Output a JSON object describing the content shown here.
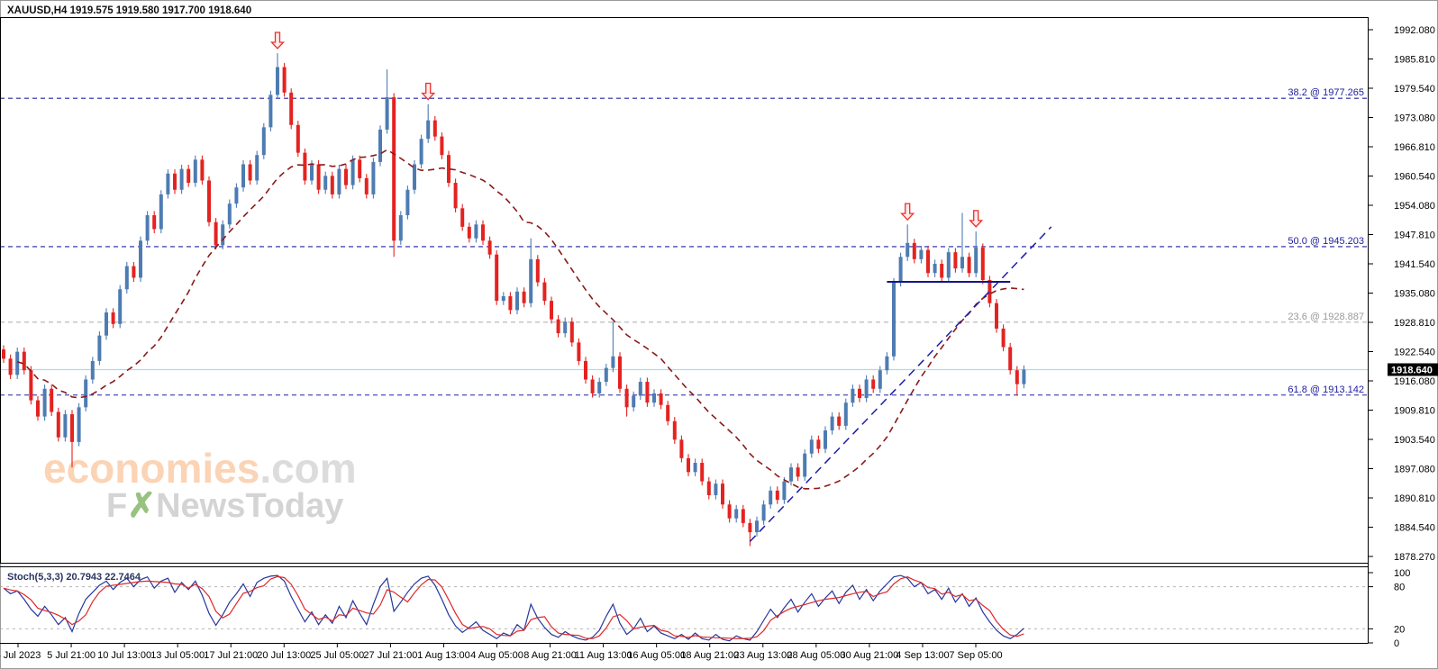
{
  "header": {
    "title": "XAUUSD,H4  1919.575 1919.580 1917.700 1918.640"
  },
  "symbol_info": {
    "symbol": "XAUUSD",
    "period": "H4",
    "open": "1919.575",
    "high": "1919.580",
    "low": "1917.700",
    "close": "1918.640"
  },
  "watermark": {
    "line1_brand": "economies",
    "line1_suffix": ".com",
    "line2_prefix": "F",
    "line2_mark": "✗",
    "line2_rest": "NewsToday"
  },
  "price_axis": {
    "labels": [
      "1992.080",
      "1985.810",
      "1979.540",
      "1973.080",
      "1966.810",
      "1960.540",
      "1954.080",
      "1947.810",
      "1941.540",
      "1935.080",
      "1928.810",
      "1922.540",
      "1916.080",
      "1909.810",
      "1903.540",
      "1897.080",
      "1890.810",
      "1884.540",
      "1878.270"
    ],
    "current_price": "1918.640"
  },
  "time_axis": {
    "labels": [
      "3 Jul 2023",
      "5 Jul 21:00",
      "10 Jul 13:00",
      "13 Jul 05:00",
      "17 Jul 21:00",
      "20 Jul 13:00",
      "25 Jul 05:00",
      "27 Jul 21:00",
      "1 Aug 13:00",
      "4 Aug 05:00",
      "8 Aug 21:00",
      "11 Aug 13:00",
      "16 Aug 05:00",
      "18 Aug 21:00",
      "23 Aug 13:00",
      "28 Aug 05:00",
      "30 Aug 21:00",
      "4 Sep 13:00",
      "7 Sep 05:00"
    ]
  },
  "fib_levels": [
    {
      "label": "38.2 @ 1977.265",
      "price": 1977.265,
      "style": "navy"
    },
    {
      "label": "50.0 @ 1945.203",
      "price": 1945.203,
      "style": "navy"
    },
    {
      "label": "23.6 @ 1928.887",
      "price": 1928.887,
      "style": "gray"
    },
    {
      "label": "61.8 @ 1913.142",
      "price": 1913.142,
      "style": "navy"
    }
  ],
  "current_price_line": {
    "price": 1918.64
  },
  "indicator_panel": {
    "label": "Stoch(5,3,3) 20.7943 22.7464",
    "name": "Stoch(5,3,3)",
    "k_value": 20.7943,
    "d_value": 22.7464,
    "scale_labels": [
      "100",
      "80",
      "20",
      "0"
    ],
    "scale_values": [
      100,
      80,
      20,
      0
    ],
    "level_lines": [
      80,
      20
    ]
  },
  "chart_data": {
    "type": "candlestick",
    "symbol": "XAUUSD",
    "timeframe": "H4",
    "title": "XAUUSD,H4",
    "y_axis": {
      "top_price": 1992.08,
      "bottom_price": 1878.27
    },
    "x_labels": [
      "3 Jul 2023",
      "5 Jul 21:00",
      "10 Jul 13:00",
      "13 Jul 05:00",
      "17 Jul 21:00",
      "20 Jul 13:00",
      "25 Jul 05:00",
      "27 Jul 21:00",
      "1 Aug 13:00",
      "4 Aug 05:00",
      "8 Aug 21:00",
      "11 Aug 13:00",
      "16 Aug 05:00",
      "18 Aug 21:00",
      "23 Aug 13:00",
      "28 Aug 05:00",
      "30 Aug 21:00",
      "4 Sep 13:00",
      "7 Sep 05:00"
    ],
    "first_open": 1923.0,
    "closes": [
      1921.0,
      1917.5,
      1922.5,
      1918.5,
      1912.0,
      1908.5,
      1914.5,
      1909.5,
      1904.0,
      1909.0,
      1903.0,
      1910.5,
      1916.5,
      1920.5,
      1926.0,
      1931.0,
      1928.5,
      1936.0,
      1941.0,
      1938.5,
      1946.5,
      1952.0,
      1949.0,
      1956.5,
      1961.0,
      1957.5,
      1962.0,
      1959.0,
      1964.0,
      1959.5,
      1950.5,
      1945.5,
      1950.0,
      1954.5,
      1958.0,
      1963.0,
      1959.5,
      1965.0,
      1971.0,
      1978.0,
      1984.0,
      1978.5,
      1971.5,
      1965.5,
      1959.5,
      1963.0,
      1957.5,
      1960.5,
      1956.5,
      1962.0,
      1958.5,
      1964.0,
      1960.0,
      1956.5,
      1963.5,
      1970.5,
      1977.5,
      1946.5,
      1952.0,
      1957.5,
      1963.0,
      1968.5,
      1972.5,
      1969.0,
      1965.0,
      1959.0,
      1953.5,
      1949.5,
      1947.0,
      1950.0,
      1946.5,
      1943.5,
      1933.5,
      1934.5,
      1931.5,
      1935.5,
      1933.0,
      1942.5,
      1937.5,
      1933.5,
      1929.5,
      1926.5,
      1929.0,
      1924.5,
      1920.5,
      1916.5,
      1913.5,
      1916.0,
      1919.0,
      1921.5,
      1914.5,
      1910.5,
      1913.0,
      1916.0,
      1911.5,
      1913.5,
      1911.0,
      1907.5,
      1903.5,
      1899.5,
      1896.5,
      1898.5,
      1894.5,
      1891.5,
      1894.0,
      1889.5,
      1886.5,
      1888.5,
      1885.5,
      1883.5,
      1886.0,
      1889.5,
      1892.5,
      1890.5,
      1894.5,
      1897.5,
      1895.5,
      1900.5,
      1903.5,
      1901.5,
      1905.5,
      1908.5,
      1906.5,
      1911.5,
      1914.5,
      1912.5,
      1916.5,
      1914.5,
      1918.5,
      1921.5,
      1937.5,
      1943.0,
      1946.0,
      1942.5,
      1944.5,
      1939.5,
      1941.5,
      1938.5,
      1944.0,
      1940.5,
      1943.0,
      1939.5,
      1945.0,
      1938.0,
      1933.0,
      1927.5,
      1923.5,
      1918.5,
      1915.5,
      1918.64
    ],
    "wick_overrides": {
      "10": {
        "l": 1897.5
      },
      "40": {
        "h": 1987.0
      },
      "56": {
        "h": 1983.5
      },
      "57": {
        "l": 1943.0
      },
      "62": {
        "h": 1976.0
      },
      "77": {
        "h": 1947.0
      },
      "89": {
        "h": 1929.0
      },
      "91": {
        "l": 1908.5
      },
      "109": {
        "l": 1880.5
      },
      "132": {
        "h": 1950.0
      },
      "140": {
        "h": 1952.5
      },
      "142": {
        "h": 1948.5
      },
      "148": {
        "l": 1913.0
      }
    },
    "moving_average": {
      "period": 20,
      "style": "dashed"
    },
    "stoch_k": [
      78,
      70,
      74,
      62,
      48,
      38,
      52,
      40,
      26,
      36,
      16,
      42,
      62,
      72,
      82,
      88,
      76,
      86,
      92,
      80,
      90,
      94,
      78,
      88,
      92,
      72,
      86,
      76,
      88,
      68,
      42,
      25,
      40,
      58,
      70,
      84,
      66,
      86,
      92,
      95,
      96,
      88,
      66,
      48,
      30,
      44,
      26,
      40,
      28,
      52,
      36,
      60,
      42,
      26,
      55,
      80,
      92,
      45,
      58,
      72,
      84,
      92,
      95,
      82,
      62,
      40,
      24,
      15,
      22,
      30,
      18,
      12,
      6,
      14,
      10,
      26,
      18,
      55,
      35,
      22,
      12,
      8,
      16,
      10,
      6,
      4,
      8,
      18,
      38,
      55,
      28,
      12,
      20,
      35,
      16,
      24,
      14,
      10,
      6,
      12,
      5,
      14,
      6,
      4,
      12,
      5,
      3,
      10,
      6,
      4,
      16,
      32,
      48,
      36,
      50,
      62,
      44,
      58,
      70,
      52,
      64,
      74,
      56,
      72,
      82,
      62,
      76,
      60,
      74,
      84,
      94,
      96,
      92,
      80,
      86,
      70,
      76,
      62,
      78,
      58,
      70,
      52,
      64,
      44,
      30,
      18,
      10,
      6,
      12,
      20.8
    ],
    "annotations": {
      "sell_arrows": [
        {
          "index": 40,
          "tip_price": 1988.0
        },
        {
          "index": 62,
          "tip_price": 1977.0
        },
        {
          "index": 132,
          "tip_price": 1951.0
        },
        {
          "index": 142,
          "tip_price": 1949.5
        }
      ],
      "trendline": {
        "from_index": 109,
        "from_price": 1881.5,
        "to_index": 153,
        "to_price": 1949.5
      },
      "support_line": {
        "from_index": 129,
        "to_index": 147,
        "price": 1937.6
      }
    }
  },
  "colors": {
    "bull": "#4e7cb2",
    "bear": "#e42320",
    "ma": "#8b1a1a",
    "fib_navy": "#2020a0",
    "fib_gray": "#b3b3b3",
    "current_line": "#a8dfe8",
    "badge_bg": "#000000",
    "stoch_k": "#26379b",
    "stoch_d": "#e02828",
    "arrow": "#e8312b",
    "arrow_fill": "#ffe9e9",
    "trend": "#1d1da8",
    "support": "#14148c",
    "level_dash": "#b5b5b5",
    "wm_orange": "#fbd3b5",
    "wm_gray": "#dcdcdc",
    "wm_green": "#97c27f",
    "border": "#000000"
  }
}
